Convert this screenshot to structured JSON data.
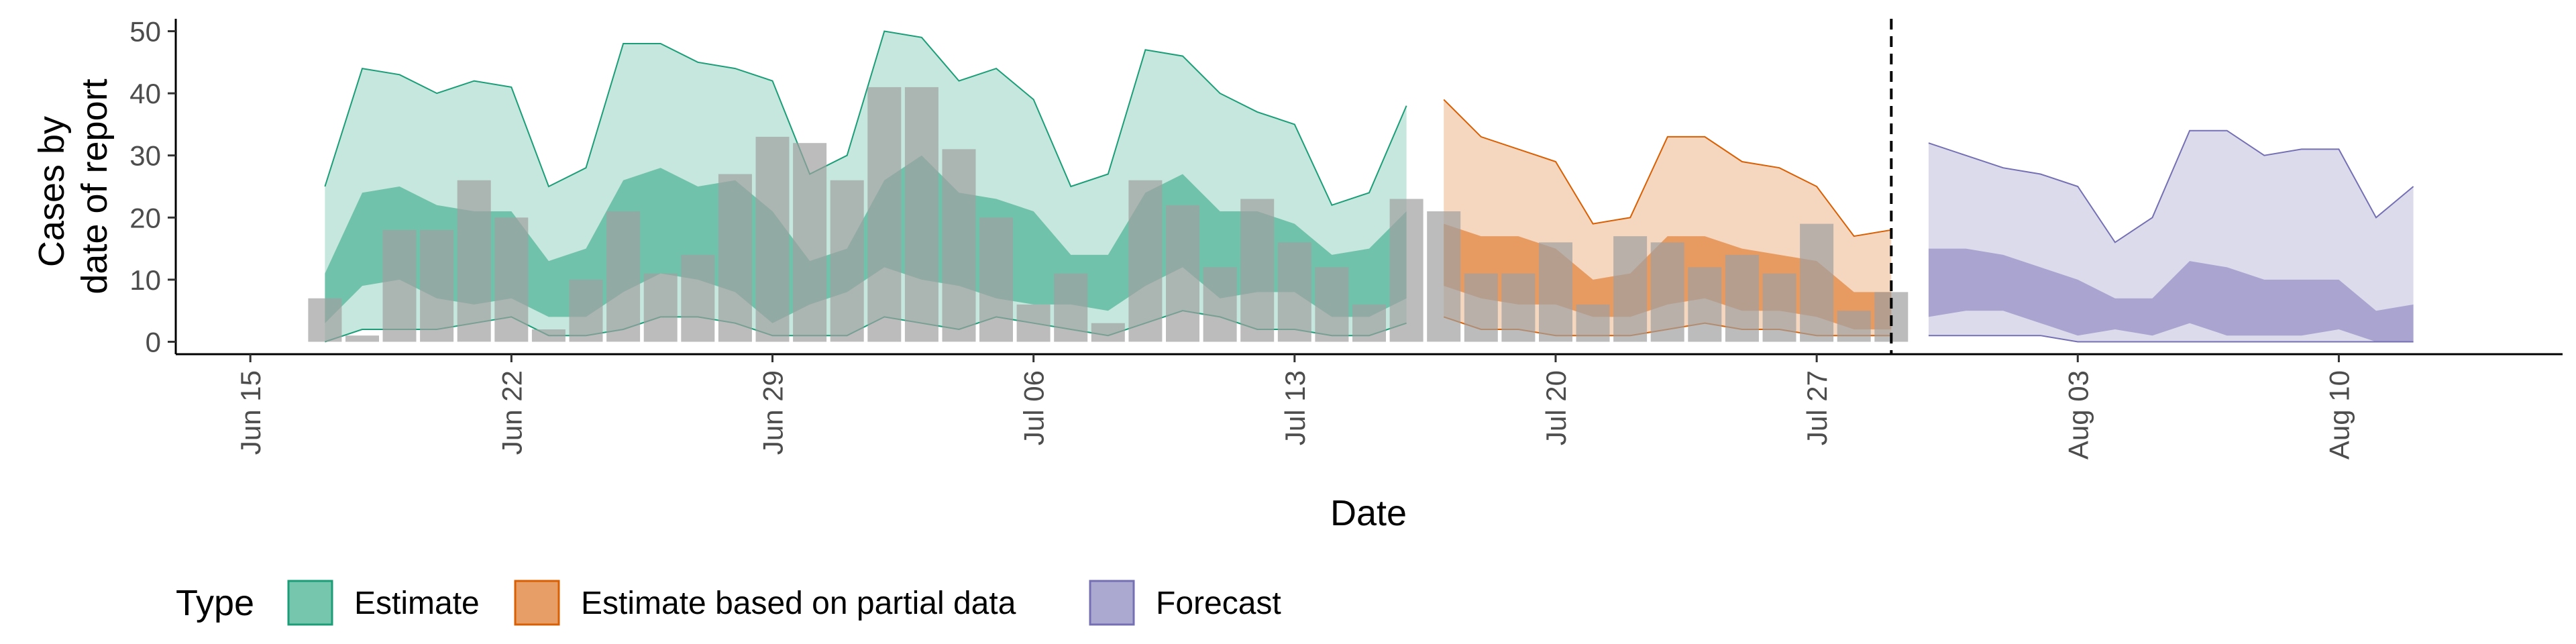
{
  "chart_data": {
    "type": "area",
    "xlabel": "Date",
    "ylabel_lines": [
      "Cases by",
      "date of report"
    ],
    "x_range": [
      "2020-06-13",
      "2020-08-16"
    ],
    "ylim": [
      -2,
      52
    ],
    "y_ticks": [
      0,
      10,
      20,
      30,
      40,
      50
    ],
    "x_ticks": [
      {
        "date": "2020-06-15",
        "label": "Jun 15"
      },
      {
        "date": "2020-06-22",
        "label": "Jun 22"
      },
      {
        "date": "2020-06-29",
        "label": "Jun 29"
      },
      {
        "date": "2020-07-06",
        "label": "Jul 06"
      },
      {
        "date": "2020-07-13",
        "label": "Jul 13"
      },
      {
        "date": "2020-07-20",
        "label": "Jul 20"
      },
      {
        "date": "2020-07-27",
        "label": "Jul 27"
      },
      {
        "date": "2020-08-03",
        "label": "Aug 03"
      },
      {
        "date": "2020-08-10",
        "label": "Aug 10"
      }
    ],
    "grid": false,
    "legend_position": "bottom-left",
    "vline_date": "2020-07-29",
    "observed_cases": {
      "dates": [
        "2020-06-17",
        "2020-06-18",
        "2020-06-19",
        "2020-06-20",
        "2020-06-21",
        "2020-06-22",
        "2020-06-23",
        "2020-06-24",
        "2020-06-25",
        "2020-06-26",
        "2020-06-27",
        "2020-06-28",
        "2020-06-29",
        "2020-06-30",
        "2020-07-01",
        "2020-07-02",
        "2020-07-03",
        "2020-07-04",
        "2020-07-05",
        "2020-07-06",
        "2020-07-07",
        "2020-07-08",
        "2020-07-09",
        "2020-07-10",
        "2020-07-11",
        "2020-07-12",
        "2020-07-13",
        "2020-07-14",
        "2020-07-15",
        "2020-07-16",
        "2020-07-17",
        "2020-07-18",
        "2020-07-19",
        "2020-07-20",
        "2020-07-21",
        "2020-07-22",
        "2020-07-23",
        "2020-07-24",
        "2020-07-25",
        "2020-07-26",
        "2020-07-27",
        "2020-07-28",
        "2020-07-29"
      ],
      "values": [
        7,
        1,
        18,
        18,
        26,
        20,
        2,
        10,
        21,
        11,
        14,
        27,
        33,
        32,
        26,
        41,
        41,
        31,
        20,
        6,
        11,
        3,
        26,
        22,
        12,
        23,
        16,
        12,
        6,
        23,
        21,
        11,
        11,
        16,
        6,
        17,
        16,
        12,
        14,
        11,
        19,
        5,
        8
      ]
    },
    "series": [
      {
        "name": "Estimate",
        "color": "#1b9e77",
        "dates": [
          "2020-06-17",
          "2020-06-18",
          "2020-06-19",
          "2020-06-20",
          "2020-06-21",
          "2020-06-22",
          "2020-06-23",
          "2020-06-24",
          "2020-06-25",
          "2020-06-26",
          "2020-06-27",
          "2020-06-28",
          "2020-06-29",
          "2020-06-30",
          "2020-07-01",
          "2020-07-02",
          "2020-07-03",
          "2020-07-04",
          "2020-07-05",
          "2020-07-06",
          "2020-07-07",
          "2020-07-08",
          "2020-07-09",
          "2020-07-10",
          "2020-07-11",
          "2020-07-12",
          "2020-07-13",
          "2020-07-14",
          "2020-07-15",
          "2020-07-16"
        ],
        "lower_90": [
          0,
          2,
          2,
          2,
          3,
          4,
          1,
          1,
          2,
          4,
          4,
          3,
          1,
          1,
          1,
          4,
          3,
          2,
          4,
          3,
          2,
          1,
          3,
          5,
          4,
          2,
          2,
          1,
          1,
          3
        ],
        "lower_50": [
          3,
          9,
          10,
          7,
          6,
          7,
          4,
          4,
          8,
          11,
          10,
          8,
          3,
          6,
          8,
          12,
          10,
          9,
          7,
          6,
          6,
          5,
          9,
          12,
          7,
          8,
          8,
          4,
          4,
          7
        ],
        "upper_50": [
          11,
          24,
          25,
          22,
          21,
          21,
          13,
          15,
          26,
          28,
          25,
          26,
          21,
          13,
          15,
          26,
          30,
          24,
          23,
          21,
          14,
          14,
          24,
          27,
          21,
          21,
          19,
          14,
          15,
          21
        ],
        "upper_90": [
          25,
          44,
          43,
          40,
          42,
          41,
          25,
          28,
          48,
          48,
          45,
          44,
          42,
          27,
          30,
          50,
          49,
          42,
          44,
          39,
          25,
          27,
          47,
          46,
          40,
          37,
          35,
          22,
          24,
          38
        ]
      },
      {
        "name": "Estimate based on partial data",
        "color": "#d95f02",
        "dates": [
          "2020-07-17",
          "2020-07-18",
          "2020-07-19",
          "2020-07-20",
          "2020-07-21",
          "2020-07-22",
          "2020-07-23",
          "2020-07-24",
          "2020-07-25",
          "2020-07-26",
          "2020-07-27",
          "2020-07-28",
          "2020-07-29"
        ],
        "lower_90": [
          4,
          2,
          2,
          1,
          1,
          1,
          2,
          3,
          2,
          2,
          1,
          1,
          1
        ],
        "lower_50": [
          9,
          7,
          6,
          6,
          4,
          4,
          6,
          7,
          5,
          5,
          4,
          2,
          2
        ],
        "upper_50": [
          19,
          17,
          17,
          15,
          10,
          11,
          17,
          17,
          15,
          14,
          13,
          8,
          8
        ],
        "upper_90": [
          39,
          33,
          31,
          29,
          19,
          20,
          33,
          33,
          29,
          28,
          25,
          17,
          18
        ]
      },
      {
        "name": "Forecast",
        "color": "#7570b3",
        "dates": [
          "2020-07-30",
          "2020-07-31",
          "2020-08-01",
          "2020-08-02",
          "2020-08-03",
          "2020-08-04",
          "2020-08-05",
          "2020-08-06",
          "2020-08-07",
          "2020-08-08",
          "2020-08-09",
          "2020-08-10",
          "2020-08-11",
          "2020-08-12"
        ],
        "lower_90": [
          1,
          1,
          1,
          1,
          0,
          0,
          0,
          0,
          0,
          0,
          0,
          0,
          0,
          0
        ],
        "lower_50": [
          4,
          5,
          5,
          3,
          1,
          2,
          1,
          3,
          1,
          1,
          1,
          2,
          0,
          0
        ],
        "upper_50": [
          15,
          15,
          14,
          12,
          10,
          7,
          7,
          13,
          12,
          10,
          10,
          10,
          5,
          6
        ],
        "upper_90": [
          32,
          30,
          28,
          27,
          25,
          16,
          20,
          34,
          34,
          30,
          31,
          31,
          20,
          25
        ]
      }
    ],
    "legend": {
      "title": "Type",
      "entries": [
        {
          "label": "Estimate",
          "color": "#1b9e77"
        },
        {
          "label": "Estimate based on partial data",
          "color": "#d95f02"
        },
        {
          "label": "Forecast",
          "color": "#7570b3"
        }
      ]
    }
  }
}
